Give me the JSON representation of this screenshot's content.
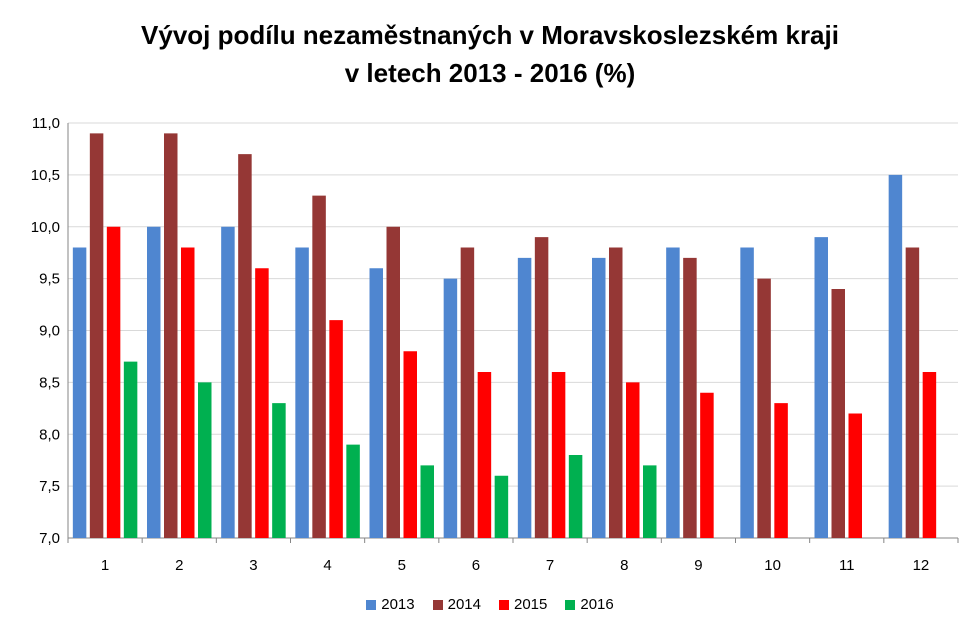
{
  "chart_data": {
    "type": "bar",
    "title_line1": "Vývoj podílu nezaměstnaných v Moravskoslezském kraji",
    "title_line2": "v letech 2013 - 2016 (%)",
    "xlabel": "",
    "ylabel": "",
    "ylim": [
      7.0,
      11.0
    ],
    "yticks": [
      "7,0",
      "7,5",
      "8,0",
      "8,5",
      "9,0",
      "9,5",
      "10,0",
      "10,5",
      "11,0"
    ],
    "categories": [
      "1",
      "2",
      "3",
      "4",
      "5",
      "6",
      "7",
      "8",
      "9",
      "10",
      "11",
      "12"
    ],
    "grid": true,
    "legend_position": "bottom",
    "series": [
      {
        "name": "2013",
        "color": "#4F86D0",
        "values": [
          9.8,
          10.0,
          10.0,
          9.8,
          9.6,
          9.5,
          9.7,
          9.7,
          9.8,
          9.8,
          9.9,
          10.5
        ]
      },
      {
        "name": "2014",
        "color": "#953735",
        "values": [
          10.9,
          10.9,
          10.7,
          10.3,
          10.0,
          9.8,
          9.9,
          9.8,
          9.7,
          9.5,
          9.4,
          9.8
        ]
      },
      {
        "name": "2015",
        "color": "#FF0000",
        "values": [
          10.0,
          9.8,
          9.6,
          9.1,
          8.8,
          8.6,
          8.6,
          8.5,
          8.4,
          8.3,
          8.2,
          8.6
        ]
      },
      {
        "name": "2016",
        "color": "#00B050",
        "values": [
          8.7,
          8.5,
          8.3,
          7.9,
          7.7,
          7.6,
          7.8,
          7.7,
          null,
          null,
          null,
          null
        ]
      }
    ]
  }
}
